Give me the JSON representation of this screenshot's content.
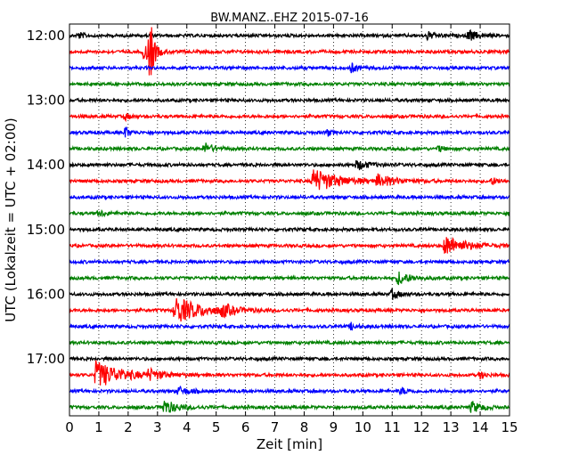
{
  "chart_data": {
    "type": "line",
    "title": "BW.MANZ..EHZ 2015-07-16",
    "xlabel": "Zeit  [min]",
    "ylabel": "UTC (Lokalzeit = UTC + 02:00)",
    "xlim": [
      0,
      15
    ],
    "x_ticks": [
      "0",
      "1",
      "2",
      "3",
      "4",
      "5",
      "6",
      "7",
      "8",
      "9",
      "10",
      "11",
      "12",
      "13",
      "14",
      "15"
    ],
    "y_ticks": [
      "12:00",
      "13:00",
      "14:00",
      "15:00",
      "16:00",
      "17:00"
    ],
    "grid": {
      "x": "dotted",
      "y": "none"
    },
    "trace_interval_min": 15,
    "start_time": "12:00",
    "end_time": "17:45",
    "colors": [
      "#000000",
      "#ff0000",
      "#0000ff",
      "#008000"
    ],
    "series": [
      {
        "start": "12:00",
        "color": "#000000",
        "events": [
          {
            "t": 0.3,
            "amp": 0.2,
            "dur": 0.4
          },
          {
            "t": 12.2,
            "amp": 0.25,
            "dur": 0.5
          },
          {
            "t": 13.6,
            "amp": 0.35,
            "dur": 0.6
          }
        ]
      },
      {
        "start": "12:15",
        "color": "#ff0000",
        "events": [
          {
            "t": 2.75,
            "amp": 1.9,
            "dur": 0.25
          },
          {
            "t": 2.55,
            "amp": 0.6,
            "dur": 0.6
          }
        ]
      },
      {
        "start": "12:30",
        "color": "#0000ff",
        "events": [
          {
            "t": 9.6,
            "amp": 0.3,
            "dur": 0.4
          }
        ]
      },
      {
        "start": "12:45",
        "color": "#008000",
        "events": []
      },
      {
        "start": "13:00",
        "color": "#000000",
        "events": []
      },
      {
        "start": "13:15",
        "color": "#ff0000",
        "events": [
          {
            "t": 1.9,
            "amp": 0.2,
            "dur": 0.3
          }
        ]
      },
      {
        "start": "13:30",
        "color": "#0000ff",
        "events": [
          {
            "t": 1.9,
            "amp": 0.35,
            "dur": 0.3
          },
          {
            "t": 8.8,
            "amp": 0.2,
            "dur": 0.3
          }
        ]
      },
      {
        "start": "13:45",
        "color": "#008000",
        "events": [
          {
            "t": 4.6,
            "amp": 0.35,
            "dur": 0.6
          },
          {
            "t": 12.6,
            "amp": 0.2,
            "dur": 0.3
          }
        ]
      },
      {
        "start": "14:00",
        "color": "#000000",
        "events": [
          {
            "t": 9.8,
            "amp": 0.3,
            "dur": 0.8
          }
        ]
      },
      {
        "start": "14:15",
        "color": "#ff0000",
        "events": [
          {
            "t": 8.3,
            "amp": 0.75,
            "dur": 1.8
          },
          {
            "t": 10.5,
            "amp": 0.35,
            "dur": 1.2
          },
          {
            "t": 14.4,
            "amp": 0.2,
            "dur": 0.6
          }
        ]
      },
      {
        "start": "14:30",
        "color": "#0000ff",
        "events": []
      },
      {
        "start": "14:45",
        "color": "#008000",
        "events": [
          {
            "t": 1.0,
            "amp": 0.2,
            "dur": 0.5
          }
        ]
      },
      {
        "start": "15:00",
        "color": "#000000",
        "events": []
      },
      {
        "start": "15:15",
        "color": "#ff0000",
        "events": [
          {
            "t": 12.8,
            "amp": 0.6,
            "dur": 1.5
          }
        ]
      },
      {
        "start": "15:30",
        "color": "#0000ff",
        "events": []
      },
      {
        "start": "15:45",
        "color": "#008000",
        "events": [
          {
            "t": 11.2,
            "amp": 0.4,
            "dur": 0.9
          }
        ]
      },
      {
        "start": "16:00",
        "color": "#000000",
        "events": [
          {
            "t": 11.0,
            "amp": 0.3,
            "dur": 0.5
          }
        ]
      },
      {
        "start": "16:15",
        "color": "#ff0000",
        "events": [
          {
            "t": 3.6,
            "amp": 0.85,
            "dur": 1.8
          },
          {
            "t": 5.2,
            "amp": 0.35,
            "dur": 0.8
          }
        ]
      },
      {
        "start": "16:30",
        "color": "#0000ff",
        "events": [
          {
            "t": 9.6,
            "amp": 0.2,
            "dur": 0.4
          }
        ]
      },
      {
        "start": "16:45",
        "color": "#008000",
        "events": []
      },
      {
        "start": "17:00",
        "color": "#000000",
        "events": []
      },
      {
        "start": "17:15",
        "color": "#ff0000",
        "events": [
          {
            "t": 0.9,
            "amp": 0.85,
            "dur": 1.8
          },
          {
            "t": 2.7,
            "amp": 0.3,
            "dur": 0.8
          },
          {
            "t": 14.0,
            "amp": 0.2,
            "dur": 0.4
          }
        ]
      },
      {
        "start": "17:30",
        "color": "#0000ff",
        "events": [
          {
            "t": 3.7,
            "amp": 0.25,
            "dur": 0.8
          },
          {
            "t": 11.3,
            "amp": 0.2,
            "dur": 0.5
          }
        ]
      },
      {
        "start": "17:45",
        "color": "#008000",
        "events": [
          {
            "t": 3.2,
            "amp": 0.45,
            "dur": 1.0
          },
          {
            "t": 13.7,
            "amp": 0.35,
            "dur": 0.7
          }
        ]
      }
    ]
  }
}
